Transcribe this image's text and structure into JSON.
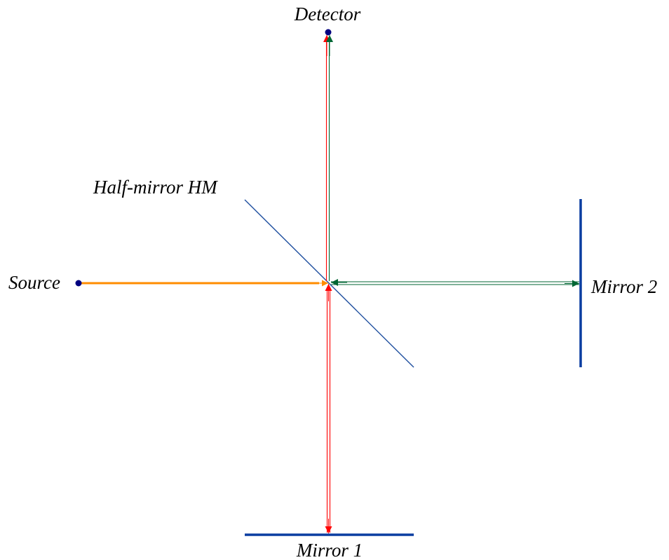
{
  "labels": {
    "detector": "Detector",
    "half_mirror": "Half-mirror HM",
    "source": "Source",
    "mirror_1": "Mirror 1",
    "mirror_2": "Mirror 2"
  },
  "colors": {
    "source_beam": "#ff8c00",
    "arm_1_beam": "#ff0000",
    "arm_2_beam": "#006633",
    "mirror": "#0a3da0",
    "half_mirror": "#1f4f9f",
    "point": "#000080"
  }
}
